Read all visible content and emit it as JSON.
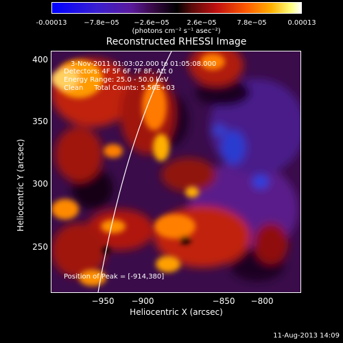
{
  "colorbar": {
    "ticks": [
      "-0.00013",
      "−7.8e−05",
      "−2.6e−05",
      "2.6e−05",
      "7.8e−05",
      "0.00013"
    ],
    "units": "(photons cm⁻² s⁻¹ asec⁻²)"
  },
  "title": "Reconstructed RHESSI Image",
  "info": {
    "time": "3-Nov-2011 01:03:02.000 to 01:05:08.000",
    "detectors": "Detectors: 4F 5F 6F 7F 8F, Att 0",
    "energy": "Energy Range: 25.0 - 50.0 keV",
    "clean": "Clean     Total Counts: 5.56E+03",
    "peak": "Position of Peak = [-914,380]"
  },
  "axes": {
    "xlabel": "Heliocentric X (arcsec)",
    "ylabel": "Heliocentric Y (arcsec)",
    "xticks": [
      "−950",
      "−900",
      "−850",
      "−800"
    ],
    "yticks": [
      "400",
      "350",
      "300",
      "250"
    ]
  },
  "footer": "11-Aug-2013 14:09"
}
